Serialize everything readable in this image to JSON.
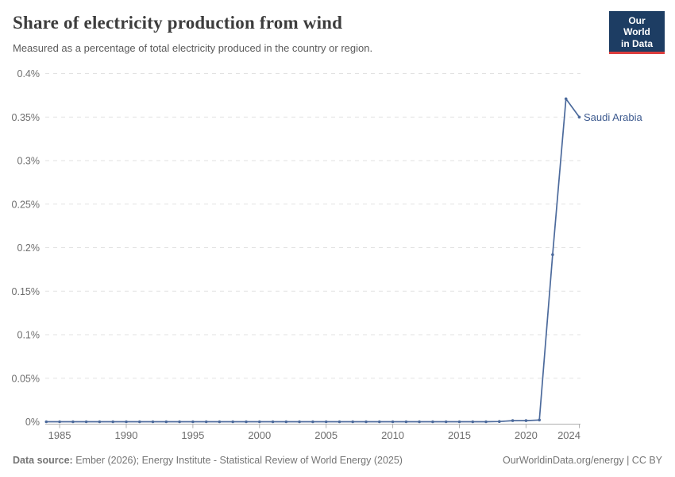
{
  "header": {
    "title": "Share of electricity production from wind",
    "subtitle": "Measured as a percentage of total electricity produced in the country or region."
  },
  "logo": {
    "line1": "Our World",
    "line2": "in Data",
    "bg_color": "#1d3d63",
    "bar_color": "#dc3e3e"
  },
  "chart_data": {
    "type": "line",
    "title": "Share of electricity production from wind",
    "xlabel": "",
    "ylabel": "",
    "xlim": [
      1984,
      2024
    ],
    "ylim": [
      0,
      0.4
    ],
    "grid": "horizontal-dashed",
    "legend": "end-of-line-label",
    "x": [
      1984,
      1985,
      1986,
      1987,
      1988,
      1989,
      1990,
      1991,
      1992,
      1993,
      1994,
      1995,
      1996,
      1997,
      1998,
      1999,
      2000,
      2001,
      2002,
      2003,
      2004,
      2005,
      2006,
      2007,
      2008,
      2009,
      2010,
      2011,
      2012,
      2013,
      2014,
      2015,
      2016,
      2017,
      2018,
      2019,
      2020,
      2021,
      2022,
      2023,
      2024
    ],
    "series": [
      {
        "name": "Saudi Arabia",
        "color": "#4c6a9c",
        "label_color": "#3d5a8f",
        "values": [
          0,
          0,
          0,
          0,
          0,
          0,
          0,
          0,
          0,
          0,
          0,
          0,
          0,
          0,
          0,
          0,
          0,
          0,
          0,
          0,
          0,
          0,
          0,
          0,
          0,
          0,
          0,
          0,
          0,
          0,
          0,
          0,
          0,
          0,
          0.0003,
          0.0013,
          0.0013,
          0.002,
          0.192,
          0.371,
          0.35
        ]
      }
    ],
    "xticks": [
      1985,
      1990,
      1995,
      2000,
      2005,
      2010,
      2015,
      2020,
      2024
    ],
    "yticks": [
      0,
      0.05,
      0.1,
      0.15,
      0.2,
      0.25,
      0.3,
      0.35,
      0.4
    ],
    "ytick_labels": [
      "0%",
      "0.05%",
      "0.1%",
      "0.15%",
      "0.2%",
      "0.25%",
      "0.3%",
      "0.35%",
      "0.4%"
    ]
  },
  "footer": {
    "source_label": "Data source:",
    "source_text": "Ember (2026); Energy Institute - Statistical Review of World Energy (2025)",
    "credit": "OurWorldinData.org/energy | CC BY"
  },
  "colors": {
    "grid": "#e2e2e2",
    "axis": "#b0b0b0",
    "tick_label": "#6e6e6e",
    "title": "#3d3d3d",
    "subtitle": "#5b5b5b",
    "footer": "#757575"
  }
}
